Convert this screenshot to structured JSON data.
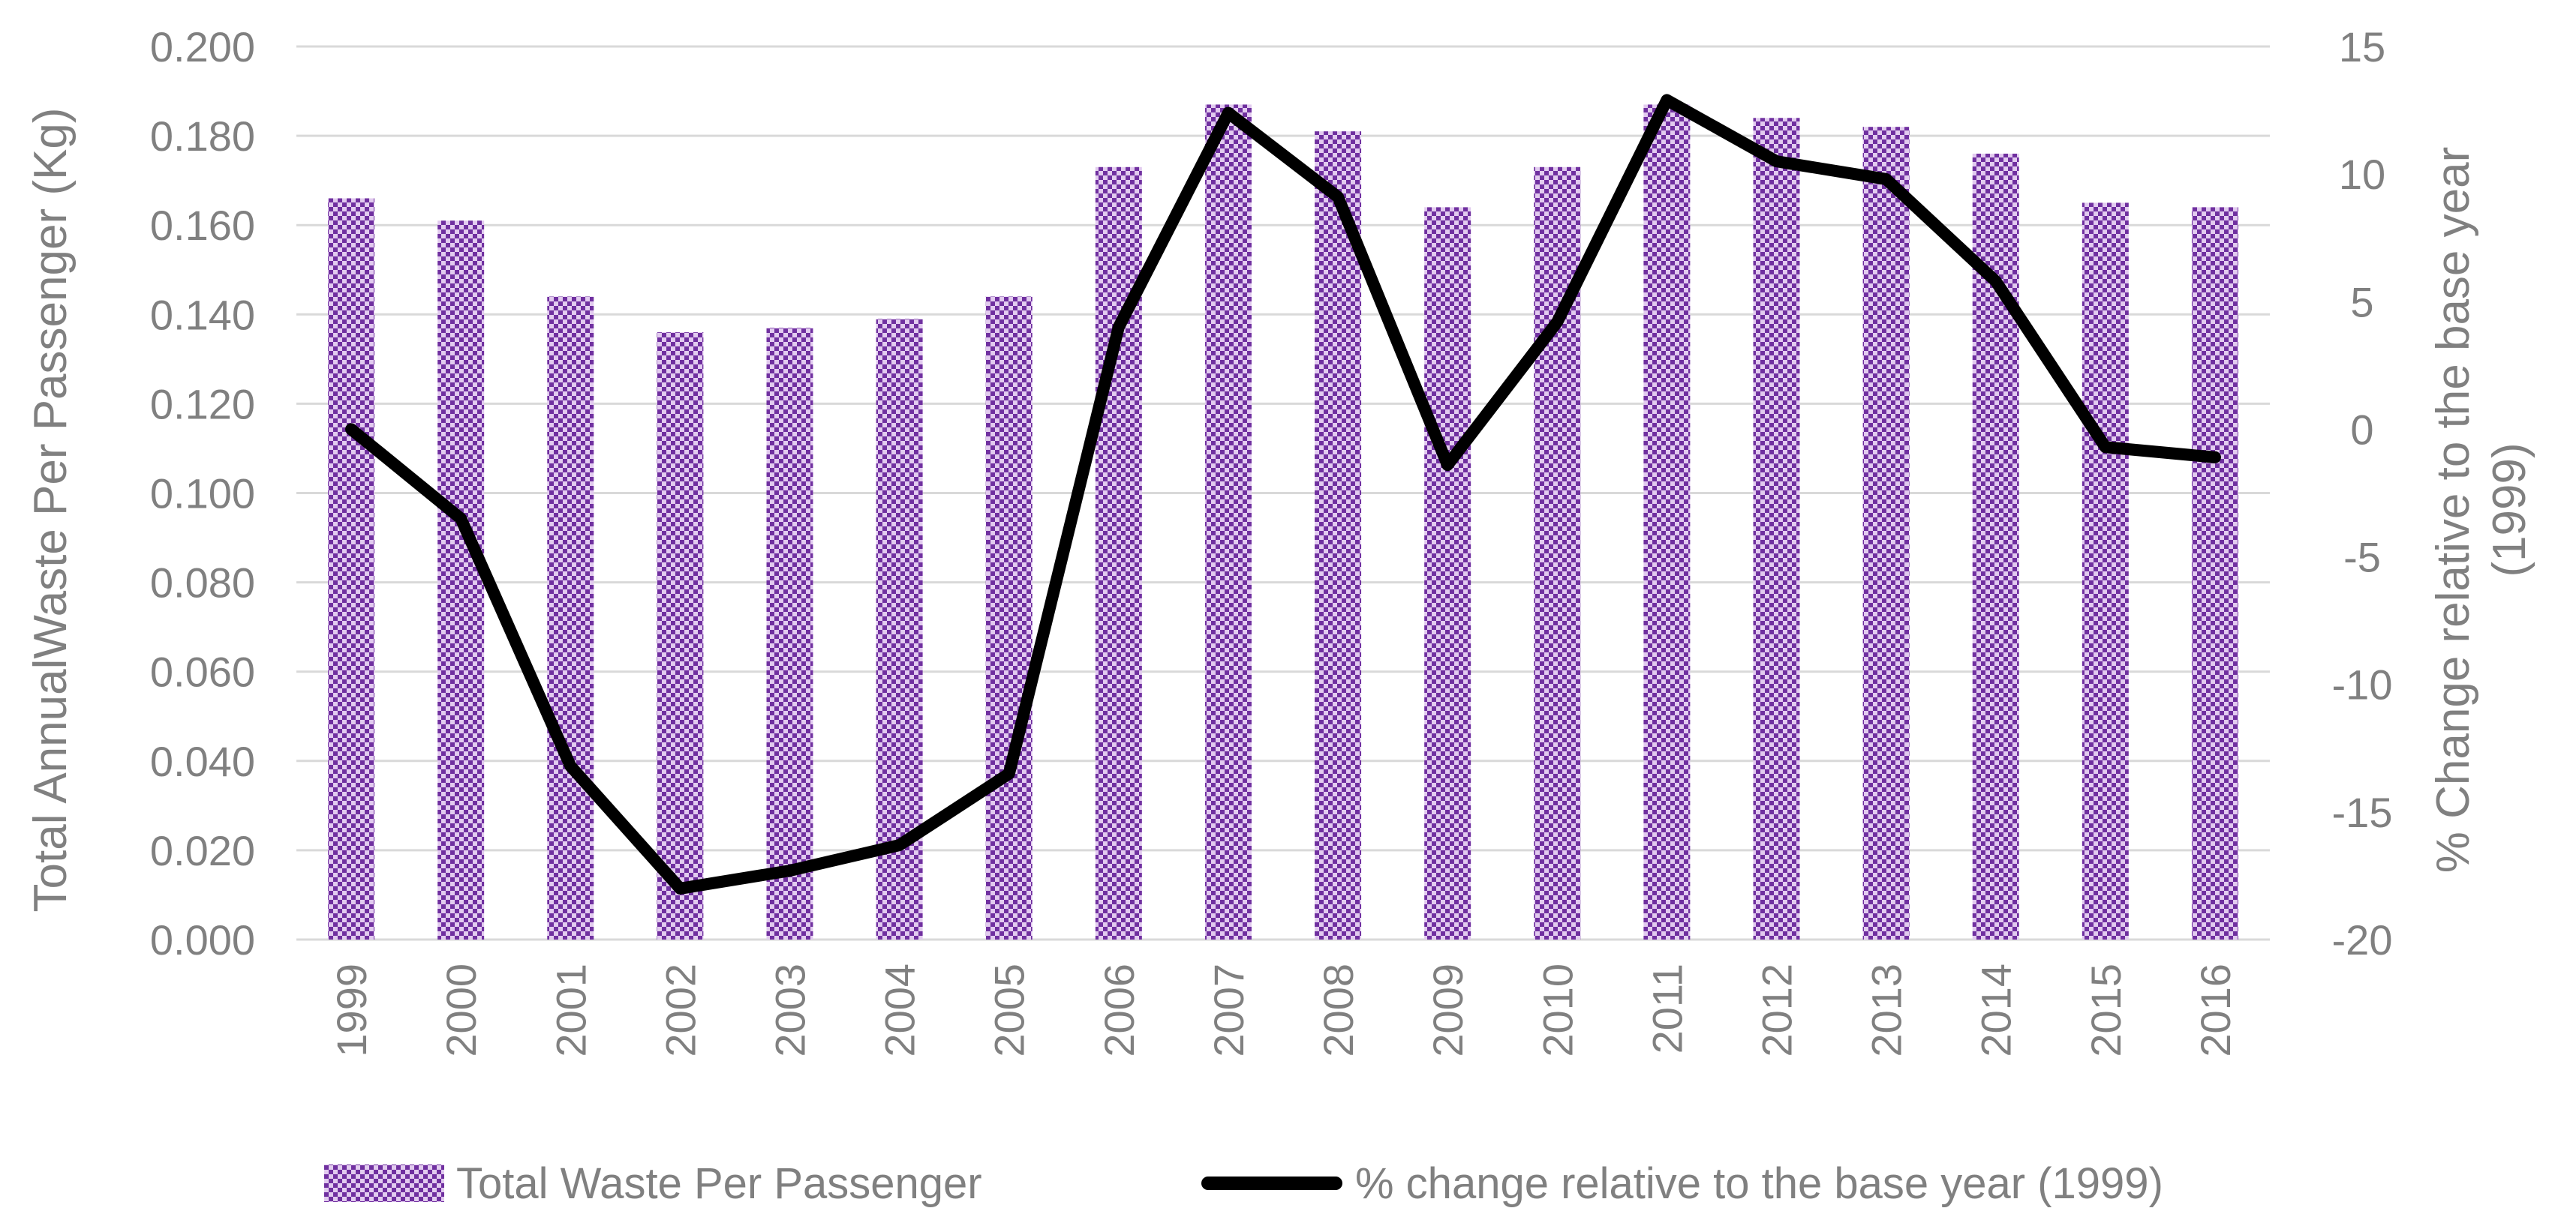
{
  "chart_data": {
    "type": "bar+line",
    "title": "",
    "categories": [
      "1999",
      "2000",
      "2001",
      "2002",
      "2003",
      "2004",
      "2005",
      "2006",
      "2007",
      "2008",
      "2009",
      "2010",
      "2011",
      "2012",
      "2013",
      "2014",
      "2015",
      "2016"
    ],
    "series": [
      {
        "name": "Total Waste Per Passenger",
        "type": "bar",
        "axis": "left",
        "values": [
          0.166,
          0.161,
          0.144,
          0.136,
          0.137,
          0.139,
          0.144,
          0.173,
          0.187,
          0.181,
          0.164,
          0.173,
          0.187,
          0.184,
          0.182,
          0.176,
          0.165,
          0.164
        ]
      },
      {
        "name": "% change relative to the base year (1999)",
        "type": "line",
        "axis": "right",
        "values": [
          0,
          -3.5,
          -13.2,
          -18.0,
          -17.3,
          -16.3,
          -13.5,
          4.0,
          12.4,
          9.1,
          -1.4,
          4.2,
          12.9,
          10.5,
          9.8,
          5.8,
          -0.7,
          -1.1
        ]
      }
    ],
    "ylabel": "Total AnnualWaste Per Passenger (Kg)",
    "y2label_line1": "% Change relative to the base year",
    "y2label_line2": "(1999)",
    "ylim": [
      0,
      0.2
    ],
    "y2lim": [
      -20,
      15
    ],
    "yticks": [
      "0.000",
      "0.020",
      "0.040",
      "0.060",
      "0.080",
      "0.100",
      "0.120",
      "0.140",
      "0.160",
      "0.180",
      "0.200"
    ],
    "y2ticks": [
      "-20",
      "-15",
      "-10",
      "-5",
      "0",
      "5",
      "10",
      "15"
    ],
    "grid": true,
    "legend_position": "bottom",
    "colors": {
      "bar": "#7030a0",
      "bar_pattern_light": "#e2cbef",
      "line": "#000000",
      "grid": "#d9d9d9",
      "text": "#808080"
    }
  }
}
